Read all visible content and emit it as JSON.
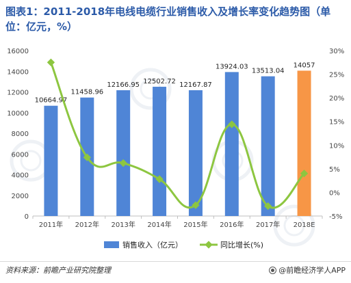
{
  "title": "图表1：2011-2018年电线电缆行业销售收入及增长率变化趋势图（单位：亿元，%）",
  "footer": {
    "source": "资料来源：前瞻产业研究院整理",
    "brand": "@前瞻经济学人APP"
  },
  "colors": {
    "bar": "#4f85d6",
    "bar_forecast": "#f79646",
    "line": "#8dc640",
    "title": "#2b5aa8"
  },
  "chart_data": {
    "type": "bar",
    "title": "",
    "xlabel": "",
    "ylabel": "",
    "categories": [
      "2011年",
      "2012年",
      "2013年",
      "2014年",
      "2015年",
      "2016年",
      "2017年",
      "2018E"
    ],
    "ylim": [
      0,
      16000
    ],
    "yticks": [
      "0",
      "2000",
      "4000",
      "6000",
      "8000",
      "10000",
      "12000",
      "14000",
      "16000"
    ],
    "y2lim": [
      -5,
      30
    ],
    "y2ticks": [
      "-5%",
      "0%",
      "5%",
      "10%",
      "15%",
      "20%",
      "25%",
      "30%"
    ],
    "grid": false,
    "legend_position": "bottom",
    "series": [
      {
        "name": "销售收入（亿元）",
        "type": "bar",
        "axis": "left",
        "values": [
          10664.97,
          11458.96,
          12166.95,
          12502.72,
          12167.87,
          13924.03,
          13513.04,
          14057
        ],
        "labels": [
          "10664.97",
          "11458.96",
          "12166.95",
          "12502.72",
          "12167.87",
          "13924.03",
          "13513.04",
          "14057"
        ]
      },
      {
        "name": "同比增长(%)",
        "type": "line",
        "axis": "right",
        "smooth": true,
        "values": [
          27.5,
          7.4,
          6.2,
          2.8,
          -2.7,
          14.4,
          -2.9,
          4.0
        ]
      }
    ]
  }
}
